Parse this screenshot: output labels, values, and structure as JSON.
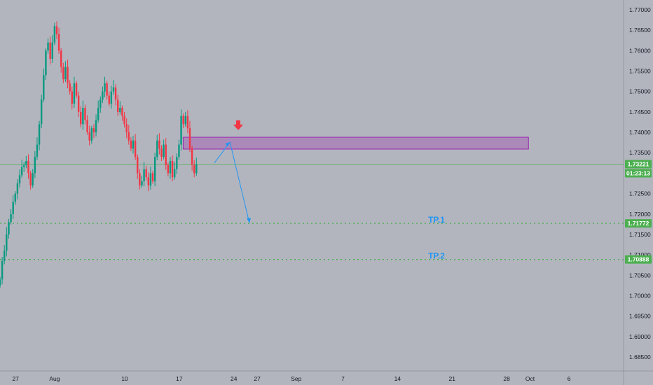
{
  "chart_data": {
    "type": "candlestick",
    "y_range": [
      1.68,
      1.774
    ],
    "y_ticks": [
      "1.77000",
      "1.76500",
      "1.76000",
      "1.75500",
      "1.75000",
      "1.74500",
      "1.74000",
      "1.73500",
      "1.73000",
      "1.72500",
      "1.72000",
      "1.71500",
      "1.71000",
      "1.70500",
      "1.70000",
      "1.69500",
      "1.69000",
      "1.68500"
    ],
    "x_range_days": [
      -2,
      78
    ],
    "x_ticks": [
      {
        "label": "27",
        "day": 0
      },
      {
        "label": "Aug",
        "day": 5
      },
      {
        "label": "10",
        "day": 14
      },
      {
        "label": "17",
        "day": 21
      },
      {
        "label": "24",
        "day": 28
      },
      {
        "label": "27",
        "day": 31
      },
      {
        "label": "Sep",
        "day": 36
      },
      {
        "label": "7",
        "day": 42
      },
      {
        "label": "14",
        "day": 49
      },
      {
        "label": "21",
        "day": 56
      },
      {
        "label": "28",
        "day": 63
      },
      {
        "label": "Oct",
        "day": 66
      },
      {
        "label": "6",
        "day": 71
      }
    ],
    "last_price": {
      "value": "1.73221",
      "countdown": "01:23:13",
      "price": 1.73221
    },
    "zone": {
      "price_top": 1.7388,
      "price_bottom": 1.7359,
      "day_start": 21.5,
      "day_end": 65.8
    },
    "levels": [
      {
        "label": "TP.1",
        "tag": "1.71772",
        "price": 1.71772
      },
      {
        "label": "TP.2",
        "tag": "1.70888",
        "price": 1.70888
      }
    ],
    "projection": [
      {
        "day": 25.5,
        "price": 1.7325
      },
      {
        "day": 27.5,
        "price": 1.7376
      },
      {
        "day": 30.0,
        "price": 1.7178
      }
    ],
    "candles_close": [
      1.704,
      1.7085,
      1.711,
      1.715,
      1.718,
      1.72,
      1.723,
      1.725,
      1.7275,
      1.7295,
      1.7315,
      1.732,
      1.733,
      1.73,
      1.727,
      1.73,
      1.734,
      1.737,
      1.742,
      1.748,
      1.754,
      1.76,
      1.762,
      1.758,
      1.762,
      1.766,
      1.764,
      1.76,
      1.756,
      1.753,
      1.756,
      1.752,
      1.75,
      1.747,
      1.752,
      1.749,
      1.745,
      1.742,
      1.746,
      1.743,
      1.74,
      1.738,
      1.741,
      1.74,
      1.743,
      1.746,
      1.748,
      1.75,
      1.752,
      1.749,
      1.747,
      1.75,
      1.751,
      1.748,
      1.745,
      1.746,
      1.744,
      1.742,
      1.74,
      1.738,
      1.736,
      1.738,
      1.734,
      1.73,
      1.727,
      1.728,
      1.731,
      1.729,
      1.727,
      1.73,
      1.728,
      1.734,
      1.738,
      1.736,
      1.734,
      1.737,
      1.732,
      1.73,
      1.733,
      1.729,
      1.731,
      1.734,
      1.737,
      1.744,
      1.742,
      1.744,
      1.741,
      1.736,
      1.732,
      1.73,
      1.7322
    ]
  }
}
